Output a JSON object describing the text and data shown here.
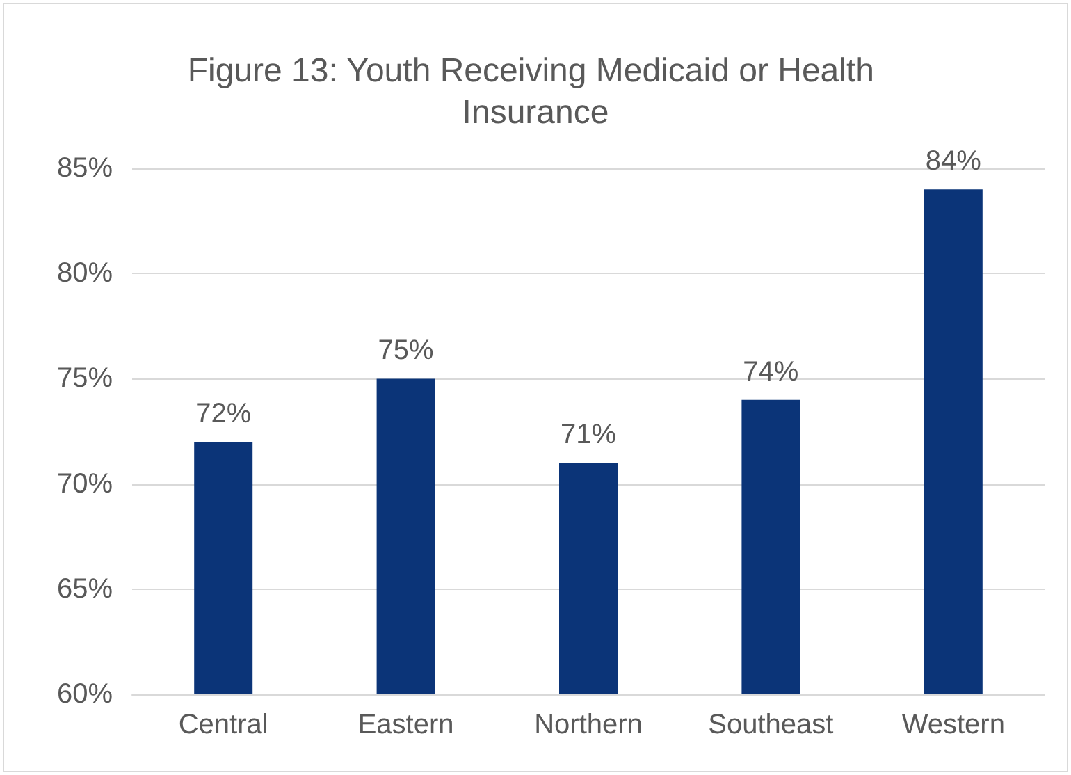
{
  "chart_data": {
    "type": "bar",
    "title": "Figure 13: Youth Receiving Medicaid or Health Insurance",
    "categories": [
      "Central",
      "Eastern",
      "Northern",
      "Southeast",
      "Western"
    ],
    "values": [
      72,
      75,
      71,
      74,
      84
    ],
    "value_labels": [
      "72%",
      "75%",
      "71%",
      "74%",
      "84%"
    ],
    "color": "#0b3478",
    "ylim": [
      60,
      85
    ],
    "yticks": [
      {
        "value": 60,
        "label": "60%"
      },
      {
        "value": 65,
        "label": "65%"
      },
      {
        "value": 70,
        "label": "70%"
      },
      {
        "value": 75,
        "label": "75%"
      },
      {
        "value": 80,
        "label": "80%"
      },
      {
        "value": 85,
        "label": "85%"
      }
    ],
    "grid": "y"
  }
}
